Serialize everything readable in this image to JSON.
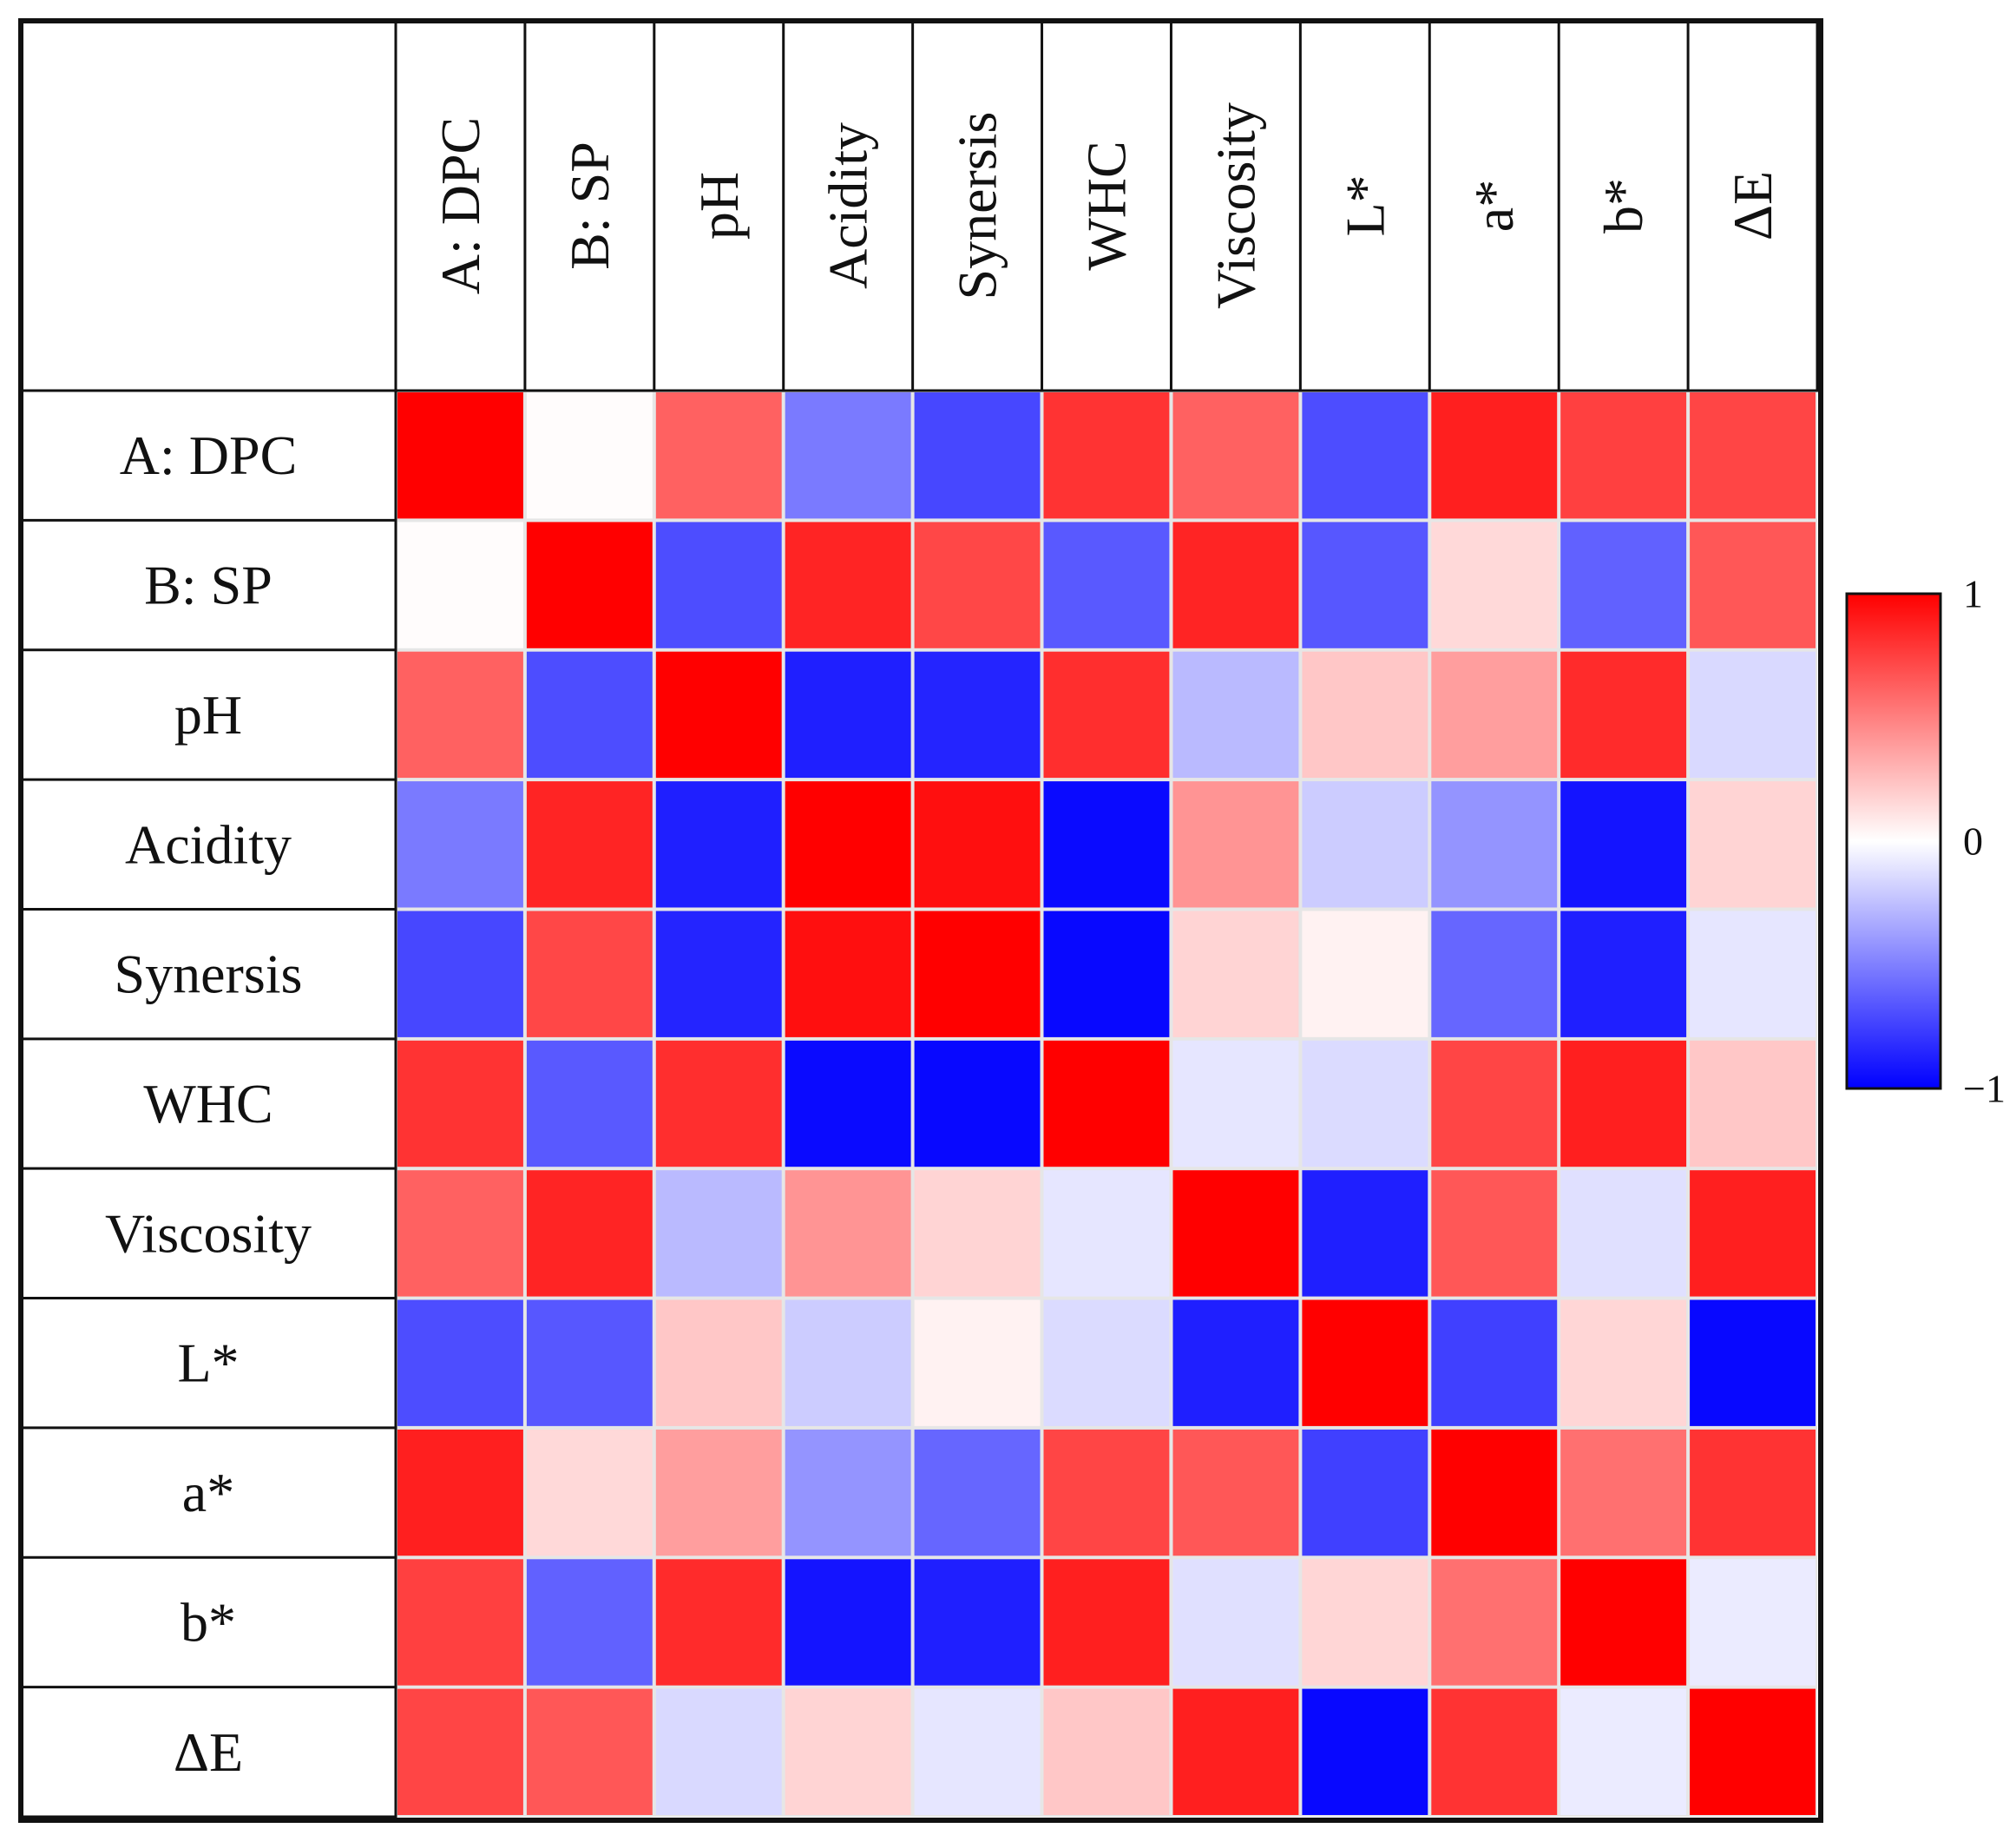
{
  "chart_data": {
    "type": "heatmap",
    "rows": [
      "A: DPC",
      "B: SP",
      "pH",
      "Acidity",
      "Synersis",
      "WHC",
      "Viscosity",
      "L*",
      "a*",
      "b*",
      "ΔE"
    ],
    "columns": [
      "A: DPC",
      "B: SP",
      "pH",
      "Acidity",
      "Synersis",
      "WHC",
      "Viscosity",
      "L*",
      "a*",
      "b*",
      "ΔE"
    ],
    "values": [
      [
        1.0,
        0.01,
        0.62,
        -0.52,
        -0.72,
        0.8,
        0.62,
        -0.7,
        0.88,
        0.75,
        0.73
      ],
      [
        0.01,
        1.0,
        -0.7,
        0.86,
        0.72,
        -0.65,
        0.86,
        -0.66,
        0.15,
        -0.62,
        0.66
      ],
      [
        0.62,
        -0.7,
        1.0,
        -0.88,
        -0.86,
        0.82,
        -0.27,
        0.22,
        0.38,
        0.83,
        -0.15
      ],
      [
        -0.52,
        0.86,
        -0.88,
        1.0,
        0.94,
        -0.96,
        0.42,
        -0.2,
        -0.42,
        -0.92,
        0.17
      ],
      [
        -0.72,
        0.72,
        -0.86,
        0.94,
        1.0,
        -0.97,
        0.17,
        0.05,
        -0.6,
        -0.88,
        -0.1
      ],
      [
        0.8,
        -0.65,
        0.82,
        -0.96,
        -0.97,
        1.0,
        -0.1,
        -0.14,
        0.73,
        0.88,
        0.22
      ],
      [
        0.62,
        0.86,
        -0.27,
        0.42,
        0.17,
        -0.1,
        1.0,
        -0.88,
        0.66,
        -0.12,
        0.88
      ],
      [
        -0.7,
        -0.66,
        0.22,
        -0.2,
        0.05,
        -0.14,
        -0.88,
        1.0,
        -0.75,
        0.16,
        -0.97
      ],
      [
        0.88,
        0.15,
        0.38,
        -0.42,
        -0.6,
        0.73,
        0.66,
        -0.75,
        1.0,
        0.56,
        0.8
      ],
      [
        0.75,
        -0.62,
        0.83,
        -0.92,
        -0.88,
        0.88,
        -0.12,
        0.16,
        0.56,
        1.0,
        -0.08
      ],
      [
        0.73,
        0.66,
        -0.15,
        0.17,
        -0.1,
        0.22,
        0.88,
        -0.97,
        0.8,
        -0.08,
        1.0
      ]
    ],
    "colorbar": {
      "ticks": [
        "1",
        "0",
        "−1"
      ],
      "tick_values": [
        1,
        0,
        -1
      ],
      "colors": {
        "max": "#ff0000",
        "mid": "#ffffff",
        "min": "#0000ff"
      }
    }
  }
}
